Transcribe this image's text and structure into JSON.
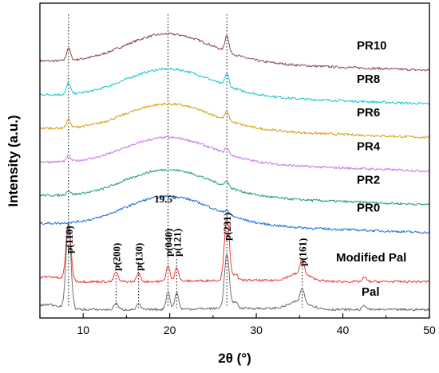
{
  "chart_data": {
    "type": "line",
    "title": "",
    "xlabel": "2θ (°)",
    "ylabel": "Intensity (a.u.)",
    "xlim": [
      5,
      50
    ],
    "x_ticks": [
      10,
      20,
      30,
      40,
      50
    ],
    "y_ticks_shown": false,
    "series": [
      {
        "name": "PR10",
        "color": "#8B4A4A",
        "offset": 8.75,
        "halo_height": 1.1,
        "peaks": [
          {
            "x": 8.3,
            "h": 0.45
          },
          {
            "x": 26.6,
            "h": 0.6
          }
        ]
      },
      {
        "name": "PR8",
        "color": "#17C7CE",
        "offset": 7.55,
        "halo_height": 1.05,
        "peaks": [
          {
            "x": 8.3,
            "h": 0.4
          },
          {
            "x": 26.6,
            "h": 0.45
          }
        ]
      },
      {
        "name": "PR6",
        "color": "#D9A012",
        "offset": 6.35,
        "halo_height": 1.0,
        "peaks": [
          {
            "x": 8.3,
            "h": 0.3
          },
          {
            "x": 26.6,
            "h": 0.3
          }
        ]
      },
      {
        "name": "PR4",
        "color": "#C77BE0",
        "offset": 5.15,
        "halo_height": 1.0,
        "peaks": [
          {
            "x": 8.3,
            "h": 0.2
          },
          {
            "x": 26.6,
            "h": 0.2
          }
        ]
      },
      {
        "name": "PR2",
        "color": "#1FA463",
        "offset": 3.95,
        "halo_height": 1.05,
        "peaks": [
          {
            "x": 8.3,
            "h": 0.15
          },
          {
            "x": 26.6,
            "h": 0.2
          }
        ]
      },
      {
        "name": "PR0",
        "color": "#1F6FE0",
        "offset": 2.95,
        "halo_height": 1.1,
        "peaks": [
          {
            "x": 26.6,
            "h": 0.15
          }
        ]
      },
      {
        "name": "Modified Pal",
        "color": "#EE3B3B",
        "offset": 1.0,
        "halo_height": 0,
        "peaks": [
          {
            "x": 8.3,
            "h": 2.05
          },
          {
            "x": 13.8,
            "h": 0.35
          },
          {
            "x": 16.4,
            "h": 0.3
          },
          {
            "x": 19.8,
            "h": 0.55
          },
          {
            "x": 20.8,
            "h": 0.5
          },
          {
            "x": 26.6,
            "h": 2.3
          },
          {
            "x": 27.6,
            "h": 0.25
          },
          {
            "x": 35.3,
            "h": 0.55
          },
          {
            "x": 42.5,
            "h": 0.15
          }
        ]
      },
      {
        "name": "Pal",
        "color": "#6E6E6E",
        "offset": 0.0,
        "halo_height": 0,
        "peaks": [
          {
            "x": 8.3,
            "h": 3.05
          },
          {
            "x": 13.8,
            "h": 0.25
          },
          {
            "x": 16.4,
            "h": 0.2
          },
          {
            "x": 19.8,
            "h": 0.65
          },
          {
            "x": 20.8,
            "h": 0.6
          },
          {
            "x": 26.6,
            "h": 1.95
          },
          {
            "x": 27.6,
            "h": 0.25
          },
          {
            "x": 35.3,
            "h": 0.5
          },
          {
            "x": 42.5,
            "h": 0.15
          }
        ]
      }
    ],
    "reference_lines": [
      8.3,
      13.8,
      16.4,
      19.8,
      20.8,
      26.6,
      35.3
    ],
    "halo_peak_x": 19.8,
    "annotations": [
      {
        "text": "p(110)",
        "x": 8.3
      },
      {
        "text": "p(200)",
        "x": 13.8
      },
      {
        "text": "p(130)",
        "x": 16.4
      },
      {
        "text": "p(040)",
        "x": 19.8
      },
      {
        "text": "p(121)",
        "x": 20.8
      },
      {
        "text": "p(231)",
        "x": 26.6
      },
      {
        "text": "p(161)",
        "x": 35.3
      },
      {
        "text": "19.5°",
        "x": 19.5
      }
    ]
  }
}
